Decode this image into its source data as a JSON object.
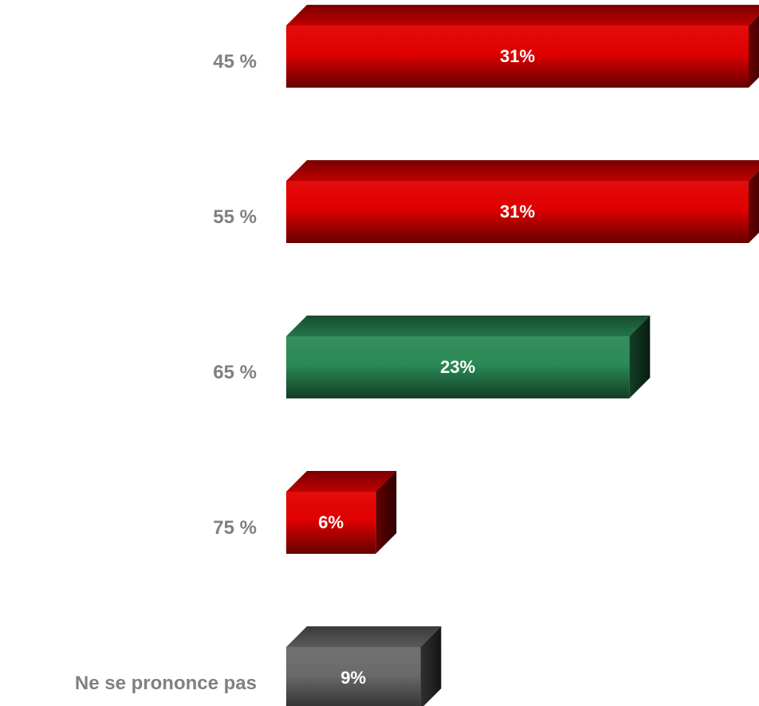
{
  "chart_data": {
    "type": "bar",
    "orientation": "horizontal",
    "style": "3d",
    "categories": [
      "45 %",
      "55 %",
      "65 %",
      "75 %",
      "Ne se prononce pas"
    ],
    "values": [
      31,
      31,
      23,
      6,
      9
    ],
    "data_labels": [
      "31%",
      "31%",
      "23%",
      "6%",
      "9%"
    ],
    "bar_colors": [
      "#e00000",
      "#e00000",
      "#2a8a55",
      "#e00000",
      "#6a6a6a"
    ],
    "title": "",
    "xlabel": "",
    "ylabel": "",
    "xlim": [
      0,
      31
    ],
    "grid": false,
    "legend": false
  },
  "colors": {
    "category_label": "#808080",
    "data_label": "#ffffff"
  }
}
